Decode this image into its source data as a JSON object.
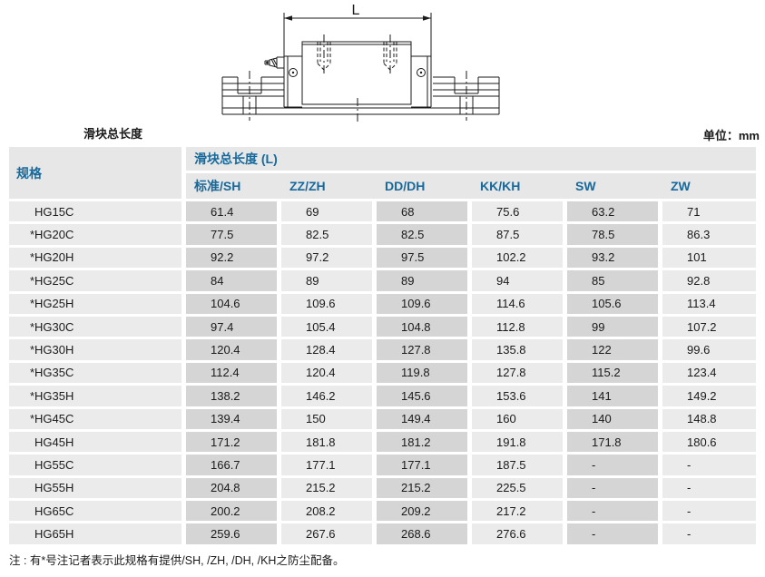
{
  "page": {
    "drawing_caption": "滑块总长度",
    "unit_label": "单位：mm",
    "footnote": "注 : 有*号注记者表示此规格有提供/SH, /ZH, /DH, /KH之防尘配备。"
  },
  "drawing": {
    "dimension_label": "L"
  },
  "table": {
    "spec_header": "规格",
    "group_header": "滑块总长度 (L)",
    "columns": [
      "标准/SH",
      "ZZ/ZH",
      "DD/DH",
      "KK/KH",
      "SW",
      "ZW"
    ],
    "rows": [
      {
        "star": "",
        "spec": "HG15C",
        "values": [
          "61.4",
          "69",
          "68",
          "75.6",
          "63.2",
          "71"
        ]
      },
      {
        "star": "*",
        "spec": "HG20C",
        "values": [
          "77.5",
          "82.5",
          "82.5",
          "87.5",
          "78.5",
          "86.3"
        ]
      },
      {
        "star": "*",
        "spec": "HG20H",
        "values": [
          "92.2",
          "97.2",
          "97.5",
          "102.2",
          "93.2",
          "101"
        ]
      },
      {
        "star": "*",
        "spec": "HG25C",
        "values": [
          "84",
          "89",
          "89",
          "94",
          "85",
          "92.8"
        ]
      },
      {
        "star": "*",
        "spec": "HG25H",
        "values": [
          "104.6",
          "109.6",
          "109.6",
          "114.6",
          "105.6",
          "113.4"
        ]
      },
      {
        "star": "*",
        "spec": "HG30C",
        "values": [
          "97.4",
          "105.4",
          "104.8",
          "112.8",
          "99",
          "107.2"
        ]
      },
      {
        "star": "*",
        "spec": "HG30H",
        "values": [
          "120.4",
          "128.4",
          "127.8",
          "135.8",
          "122",
          "99.6"
        ]
      },
      {
        "star": "*",
        "spec": "HG35C",
        "values": [
          "112.4",
          "120.4",
          "119.8",
          "127.8",
          "115.2",
          "123.4"
        ]
      },
      {
        "star": "*",
        "spec": "HG35H",
        "values": [
          "138.2",
          "146.2",
          "145.6",
          "153.6",
          "141",
          "149.2"
        ]
      },
      {
        "star": "*",
        "spec": "HG45C",
        "values": [
          "139.4",
          "150",
          "149.4",
          "160",
          "140",
          "148.8"
        ]
      },
      {
        "star": "",
        "spec": "HG45H",
        "values": [
          "171.2",
          "181.8",
          "181.2",
          "191.8",
          "171.8",
          "180.6"
        ]
      },
      {
        "star": "",
        "spec": "HG55C",
        "values": [
          "166.7",
          "177.1",
          "177.1",
          "187.5",
          "-",
          "-"
        ]
      },
      {
        "star": "",
        "spec": "HG55H",
        "values": [
          "204.8",
          "215.2",
          "215.2",
          "225.5",
          "-",
          "-"
        ]
      },
      {
        "star": "",
        "spec": "HG65C",
        "values": [
          "200.2",
          "208.2",
          "209.2",
          "217.2",
          "-",
          "-"
        ]
      },
      {
        "star": "",
        "spec": "HG65H",
        "values": [
          "259.6",
          "267.6",
          "268.6",
          "276.6",
          "-",
          "-"
        ]
      }
    ]
  },
  "colors": {
    "header_text": "#17699c",
    "header_bg": "#e7e7e7",
    "cell_dark": "#d5d5d5",
    "cell_light": "#ebebeb",
    "ink": "#1a1a1a"
  }
}
